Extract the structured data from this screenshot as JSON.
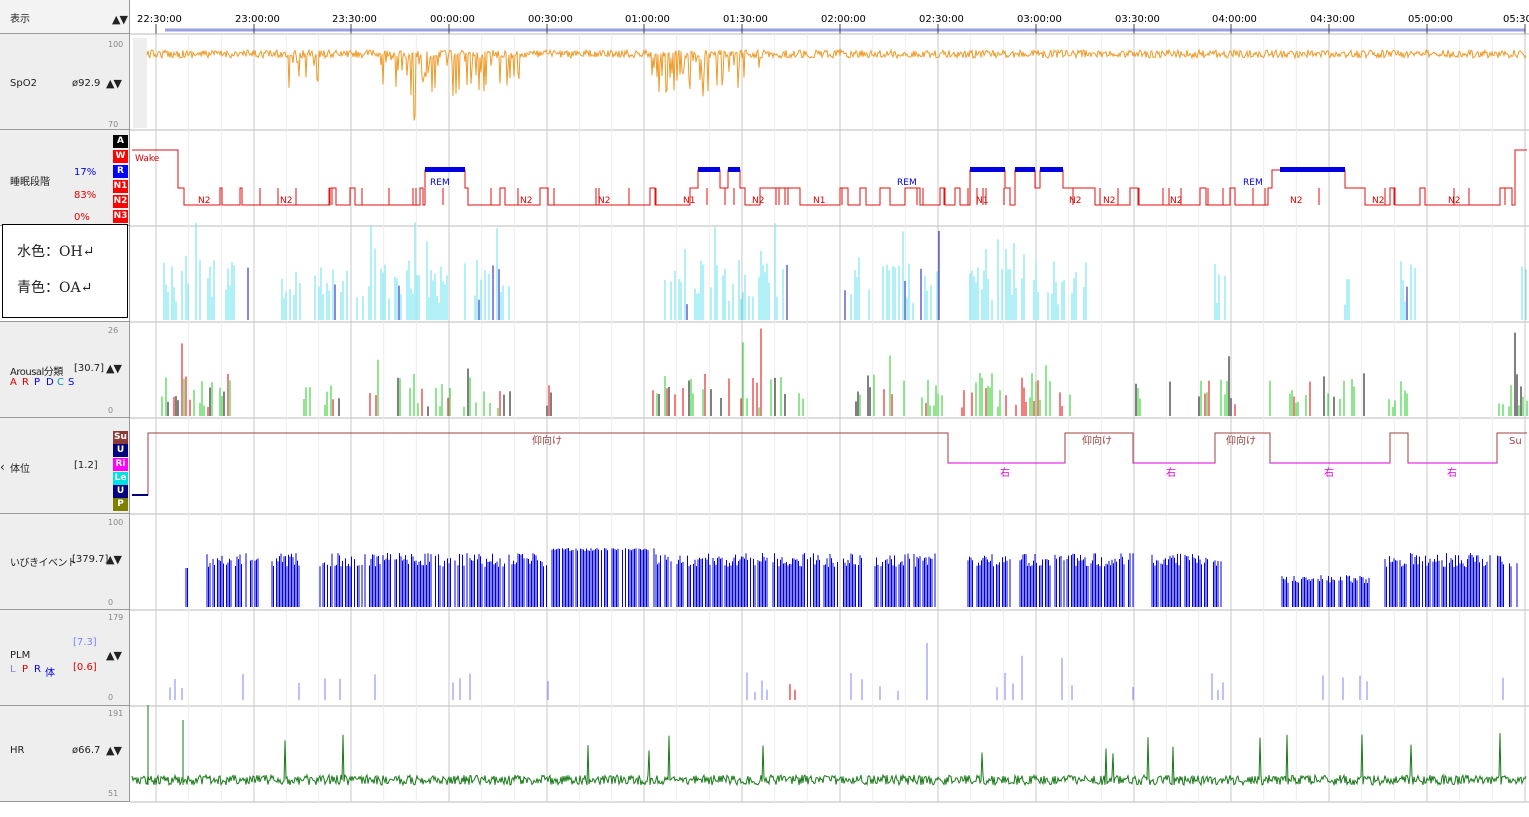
{
  "header": {
    "display_label": "表示",
    "sort_arrows": "▲▼",
    "time_ticks": [
      "22:30:00",
      "23:00:00",
      "23:30:00",
      "00:00:00",
      "00:30:00",
      "01:00:00",
      "01:30:00",
      "02:00:00",
      "02:30:00",
      "03:00:00",
      "03:30:00",
      "04:00:00",
      "04:30:00",
      "05:00:00",
      "05:30"
    ]
  },
  "tracks": {
    "spo2": {
      "label": "SpO2",
      "value": "ø92.9",
      "arrows": "▲▼",
      "scale_max": "100",
      "scale_min": "70",
      "color": "#f09a28"
    },
    "sleep": {
      "label": "睡眠段階",
      "pct_r": "17%",
      "pct_n1": "83%",
      "pct_n3": "0%",
      "stages": [
        "A",
        "W",
        "R",
        "N1",
        "N2",
        "N3"
      ],
      "stage_colors": [
        "#000000",
        "#ff0000",
        "#0000ff",
        "#ff0000",
        "#ff0000",
        "#ff0000"
      ],
      "wake_label": "Wake",
      "annotations": [
        "N2",
        "N2",
        "REM",
        "N2",
        "N2",
        "N1",
        "N2",
        "N1",
        "REM",
        "N1",
        "N2",
        "N2",
        "N2",
        "REM",
        "N2",
        "N2"
      ],
      "color": "#e01010"
    },
    "resp": {
      "legend_oh": "水色：OH↵",
      "legend_oa": "青色：OA↵",
      "oh_color": "#66e0f0",
      "oa_color": "#1010c0"
    },
    "arousal": {
      "label": "Arousal分類",
      "value": "[30.7]",
      "arrows": "▲▼",
      "letters": [
        "A",
        "R",
        "P",
        "D",
        "C",
        "S"
      ],
      "letter_colors": [
        "#e00000",
        "#e00000",
        "#0000ff",
        "#0000ff",
        "#00a0a0",
        "#0000ff"
      ],
      "scale_max": "26",
      "scale_min": "0"
    },
    "position": {
      "label": "体位",
      "value": "[1.2]",
      "collapse": "‹",
      "codes": [
        "Su",
        "U",
        "Ri",
        "Le",
        "U",
        "P"
      ],
      "code_colors": [
        "#8b3a3a",
        "#000080",
        "#ff00ff",
        "#00e0e0",
        "#000080",
        "#808000"
      ],
      "labels": [
        "仰向け",
        "右",
        "仰向け",
        "右",
        "仰向け",
        "右",
        "右",
        "Su"
      ]
    },
    "snore": {
      "label": "いびきイベント",
      "value": "[379.7]",
      "arrows": "▲▼",
      "scale_max": "100",
      "scale_min": "0",
      "color": "#0000e0"
    },
    "plm": {
      "label": "PLM",
      "value_top": "[7.3]",
      "value_bottom": "[0.6]",
      "arrows": "▲▼",
      "sub": [
        "L",
        "P",
        "R",
        "体"
      ],
      "sub_colors": [
        "#8080ff",
        "#e00000",
        "#0000ff",
        "#0000ff"
      ],
      "scale_max": "179",
      "scale_min": "0"
    },
    "hr": {
      "label": "HR",
      "value": "ø66.7",
      "arrows": "▲▼",
      "scale_max": "191",
      "scale_min": "51",
      "color": "#1a7a1a"
    }
  }
}
